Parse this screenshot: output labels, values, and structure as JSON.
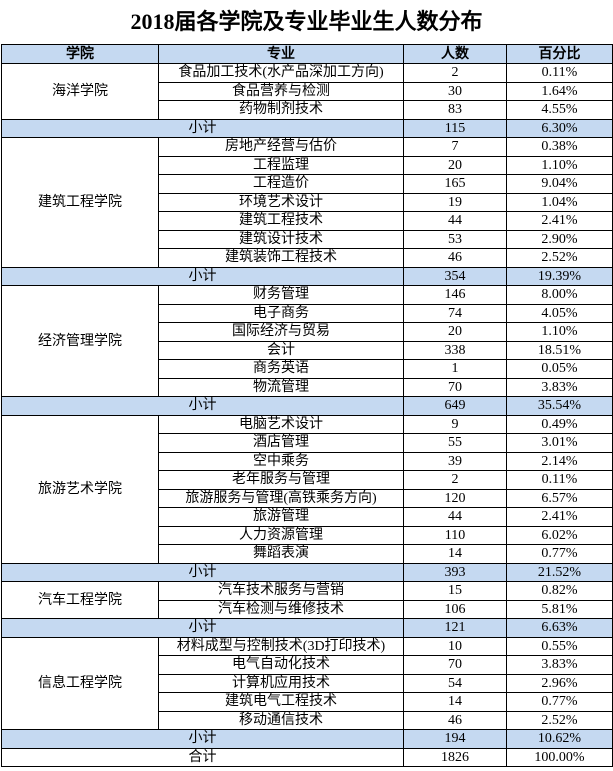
{
  "title": "2018届各学院及专业毕业生人数分布",
  "header": [
    "学院",
    "专业",
    "人数",
    "百分比"
  ],
  "schools": [
    {
      "name": "海洋学院",
      "majors": [
        [
          "食品加工技术(水产品深加工方向)",
          2,
          "0.11%"
        ],
        [
          "食品营养与检测",
          30,
          "1.64%"
        ],
        [
          "药物制剂技术",
          83,
          "4.55%"
        ]
      ],
      "subtotal": [
        "小计",
        115,
        "6.30%"
      ]
    },
    {
      "name": "建筑工程学院",
      "majors": [
        [
          "房地产经营与估价",
          7,
          "0.38%"
        ],
        [
          "工程监理",
          20,
          "1.10%"
        ],
        [
          "工程造价",
          165,
          "9.04%"
        ],
        [
          "环境艺术设计",
          19,
          "1.04%"
        ],
        [
          "建筑工程技术",
          44,
          "2.41%"
        ],
        [
          "建筑设计技术",
          53,
          "2.90%"
        ],
        [
          "建筑装饰工程技术",
          46,
          "2.52%"
        ]
      ],
      "subtotal": [
        "小计",
        354,
        "19.39%"
      ]
    },
    {
      "name": "经济管理学院",
      "majors": [
        [
          "财务管理",
          146,
          "8.00%"
        ],
        [
          "电子商务",
          74,
          "4.05%"
        ],
        [
          "国际经济与贸易",
          20,
          "1.10%"
        ],
        [
          "会计",
          338,
          "18.51%"
        ],
        [
          "商务英语",
          1,
          "0.05%"
        ],
        [
          "物流管理",
          70,
          "3.83%"
        ]
      ],
      "subtotal": [
        "小计",
        649,
        "35.54%"
      ]
    },
    {
      "name": "旅游艺术学院",
      "majors": [
        [
          "电脑艺术设计",
          9,
          "0.49%"
        ],
        [
          "酒店管理",
          55,
          "3.01%"
        ],
        [
          "空中乘务",
          39,
          "2.14%"
        ],
        [
          "老年服务与管理",
          2,
          "0.11%"
        ],
        [
          "旅游服务与管理(高铁乘务方向)",
          120,
          "6.57%"
        ],
        [
          "旅游管理",
          44,
          "2.41%"
        ],
        [
          "人力资源管理",
          110,
          "6.02%"
        ],
        [
          "舞蹈表演",
          14,
          "0.77%"
        ]
      ],
      "subtotal": [
        "小计",
        393,
        "21.52%"
      ]
    },
    {
      "name": "汽车工程学院",
      "majors": [
        [
          "汽车技术服务与营销",
          15,
          "0.82%"
        ],
        [
          "汽车检测与维修技术",
          106,
          "5.81%"
        ]
      ],
      "subtotal": [
        "小计",
        121,
        "6.63%"
      ]
    },
    {
      "name": "信息工程学院",
      "majors": [
        [
          "材料成型与控制技术(3D打印技术)",
          10,
          "0.55%"
        ],
        [
          "电气自动化技术",
          70,
          "3.83%"
        ],
        [
          "计算机应用技术",
          54,
          "2.96%"
        ],
        [
          "建筑电气工程技术",
          14,
          "0.77%"
        ],
        [
          "移动通信技术",
          46,
          "2.52%"
        ]
      ],
      "subtotal": [
        "小计",
        194,
        "10.62%"
      ]
    }
  ],
  "total": [
    "合计",
    1826,
    "100.00%"
  ]
}
